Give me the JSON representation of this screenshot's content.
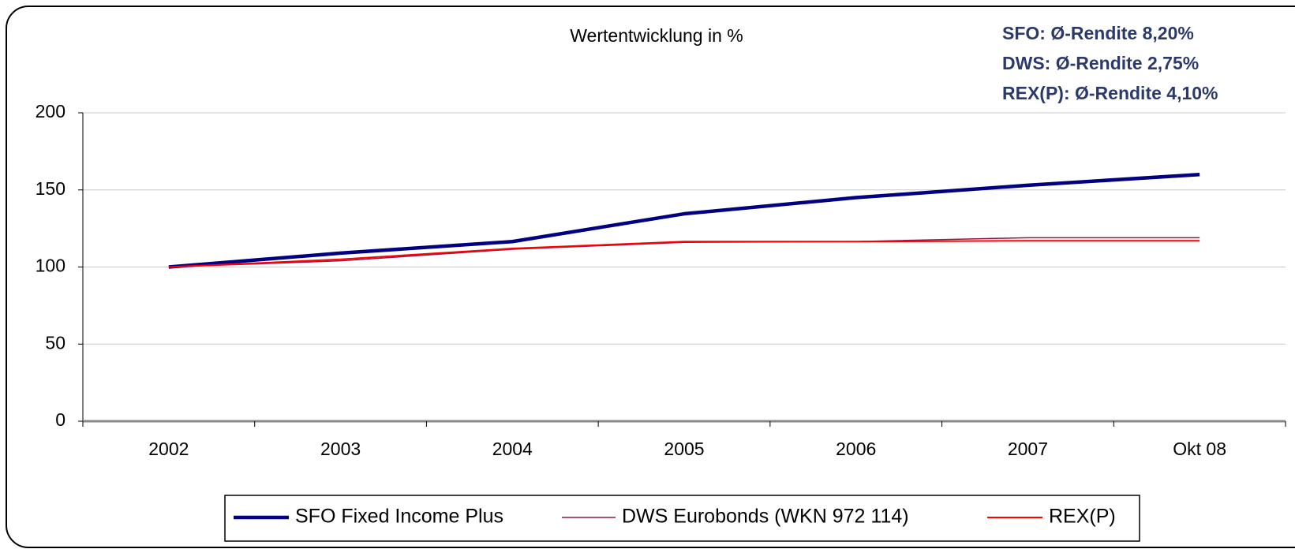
{
  "chart_data": {
    "type": "line",
    "title": "Wertentwicklung in %",
    "annotations": [
      "SFO: Ø-Rendite 8,20%",
      "DWS: Ø-Rendite 2,75%",
      "REX(P): Ø-Rendite 4,10%"
    ],
    "categories": [
      "2002",
      "2003",
      "2004",
      "2005",
      "2006",
      "2007",
      "Okt 08"
    ],
    "series": [
      {
        "name": "SFO Fixed Income Plus",
        "color": "#000080",
        "values": [
          100,
          109,
          116.5,
          134.5,
          145,
          153,
          160
        ]
      },
      {
        "name": "DWS Eurobonds (WKN 972 114)",
        "color": "#8b1a4a",
        "values": [
          100,
          104,
          111.5,
          116,
          116.5,
          119,
          119
        ]
      },
      {
        "name": "REX(P)",
        "color": "#ff0000",
        "values": [
          100,
          105,
          112,
          116.5,
          116.5,
          117,
          117
        ]
      }
    ],
    "ylim": [
      0,
      200
    ],
    "yticks": [
      0,
      50,
      100,
      150,
      200
    ],
    "grid": true,
    "legend": "bottom"
  }
}
